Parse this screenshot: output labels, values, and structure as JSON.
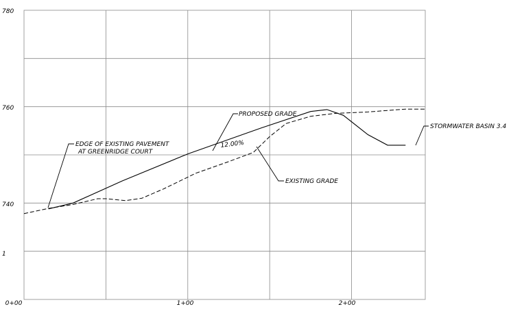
{
  "chart_data": {
    "type": "line",
    "title": "",
    "xlabel": "",
    "ylabel": "",
    "x_tick_labels": [
      "0+00",
      "1+00",
      "2+00"
    ],
    "y_tick_labels": [
      "780",
      "760",
      "740"
    ],
    "stray_label": "1",
    "xlim": [
      0,
      245
    ],
    "ylim": [
      720,
      780
    ],
    "grid": true,
    "series": [
      {
        "key": "proposed",
        "style": "solid",
        "points": [
          [
            15,
            738.8
          ],
          [
            30,
            740.0
          ],
          [
            60,
            744.6
          ],
          [
            100,
            750.2
          ],
          [
            145,
            755.6
          ],
          [
            175,
            759.0
          ],
          [
            185,
            759.4
          ],
          [
            195,
            758.2
          ],
          [
            210,
            754.2
          ],
          [
            222,
            752.0
          ],
          [
            233,
            752.0
          ]
        ],
        "label": "PROPOSED GRADE"
      },
      {
        "key": "existing",
        "style": "dashed",
        "points": [
          [
            0,
            737.8
          ],
          [
            15,
            738.9
          ],
          [
            30,
            739.7
          ],
          [
            45,
            740.9
          ],
          [
            50,
            740.9
          ],
          [
            62,
            740.5
          ],
          [
            72,
            741.0
          ],
          [
            85,
            742.9
          ],
          [
            105,
            746.2
          ],
          [
            125,
            748.6
          ],
          [
            140,
            750.5
          ],
          [
            150,
            753.8
          ],
          [
            160,
            756.5
          ],
          [
            175,
            758.0
          ],
          [
            190,
            758.6
          ],
          [
            210,
            758.9
          ],
          [
            233,
            759.5
          ],
          [
            245,
            759.5
          ]
        ],
        "label": "EXISTING GRADE"
      }
    ],
    "annotations": {
      "slope": "12.00%",
      "pavement_line1": "EDGE OF EXISTING PAVEMENT",
      "pavement_line2": "AT GREENRIDGE COURT",
      "basin": "STORMWATER BASIN 3.4"
    }
  }
}
